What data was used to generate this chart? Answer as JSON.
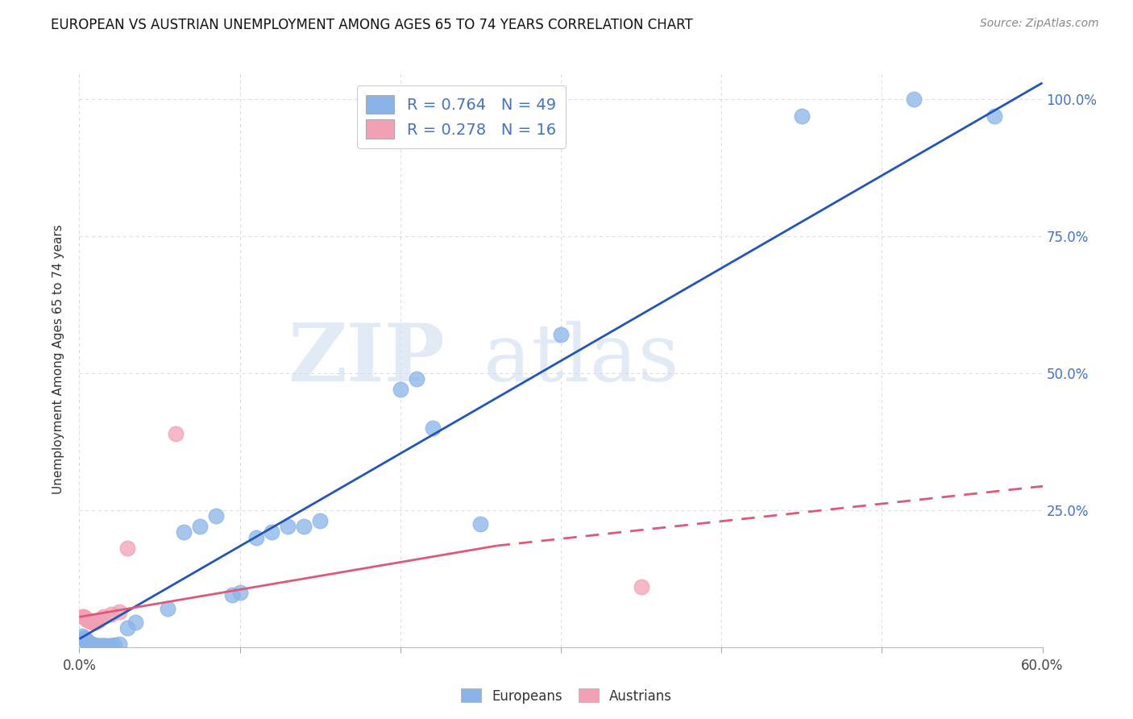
{
  "title": "EUROPEAN VS AUSTRIAN UNEMPLOYMENT AMONG AGES 65 TO 74 YEARS CORRELATION CHART",
  "source": "Source: ZipAtlas.com",
  "ylabel": "Unemployment Among Ages 65 to 74 years",
  "xlim": [
    0.0,
    0.62
  ],
  "ylim": [
    -0.01,
    1.07
  ],
  "plot_xlim": [
    0.0,
    0.6
  ],
  "plot_ylim": [
    0.0,
    1.05
  ],
  "xticks": [
    0.0,
    0.1,
    0.2,
    0.3,
    0.4,
    0.5,
    0.6
  ],
  "xtick_labels": [
    "0.0%",
    "",
    "",
    "",
    "",
    "",
    "60.0%"
  ],
  "yticks_right": [
    0.25,
    0.5,
    0.75,
    1.0
  ],
  "ytick_labels_right": [
    "25.0%",
    "50.0%",
    "75.0%",
    "100.0%"
  ],
  "european_color": "#8ab4e8",
  "austrian_color": "#f2a0b5",
  "trend_european_color": "#2255bb",
  "trend_austrian_solid_color": "#e05878",
  "trend_austrian_dash_color": "#e05878",
  "legend_text_color": "#4472c4",
  "watermark": "ZIPatlas",
  "background_color": "#ffffff",
  "grid_color": "#cccccc",
  "eu_trend_x0": 0.0,
  "eu_trend_y0": 0.015,
  "eu_trend_x1": 0.6,
  "eu_trend_y1": 1.03,
  "at_trend_solid_x0": 0.0,
  "at_trend_solid_y0": 0.055,
  "at_trend_solid_x1": 0.26,
  "at_trend_solid_y1": 0.185,
  "at_trend_dash_x0": 0.26,
  "at_trend_dash_y0": 0.185,
  "at_trend_dash_x1": 0.62,
  "at_trend_dash_y1": 0.3,
  "eu_x": [
    0.002,
    0.003,
    0.003,
    0.004,
    0.004,
    0.005,
    0.005,
    0.005,
    0.006,
    0.006,
    0.007,
    0.007,
    0.008,
    0.008,
    0.009,
    0.009,
    0.01,
    0.01,
    0.011,
    0.012,
    0.013,
    0.014,
    0.015,
    0.016,
    0.018,
    0.02,
    0.022,
    0.025,
    0.03,
    0.035,
    0.055,
    0.065,
    0.075,
    0.085,
    0.095,
    0.1,
    0.11,
    0.12,
    0.13,
    0.14,
    0.15,
    0.2,
    0.21,
    0.22,
    0.25,
    0.3,
    0.45,
    0.52,
    0.57
  ],
  "eu_y": [
    0.02,
    0.018,
    0.015,
    0.015,
    0.012,
    0.012,
    0.01,
    0.008,
    0.008,
    0.006,
    0.006,
    0.005,
    0.005,
    0.004,
    0.004,
    0.003,
    0.003,
    0.002,
    0.002,
    0.002,
    0.002,
    0.002,
    0.002,
    0.002,
    0.002,
    0.003,
    0.004,
    0.005,
    0.035,
    0.045,
    0.07,
    0.21,
    0.22,
    0.24,
    0.095,
    0.1,
    0.2,
    0.21,
    0.22,
    0.22,
    0.23,
    0.47,
    0.49,
    0.4,
    0.225,
    0.57,
    0.97,
    1.0,
    0.97
  ],
  "at_x": [
    0.002,
    0.003,
    0.004,
    0.005,
    0.006,
    0.007,
    0.008,
    0.009,
    0.01,
    0.012,
    0.015,
    0.02,
    0.025,
    0.03,
    0.06,
    0.35
  ],
  "at_y": [
    0.055,
    0.055,
    0.052,
    0.05,
    0.048,
    0.048,
    0.046,
    0.045,
    0.045,
    0.048,
    0.055,
    0.06,
    0.065,
    0.18,
    0.39,
    0.11
  ]
}
